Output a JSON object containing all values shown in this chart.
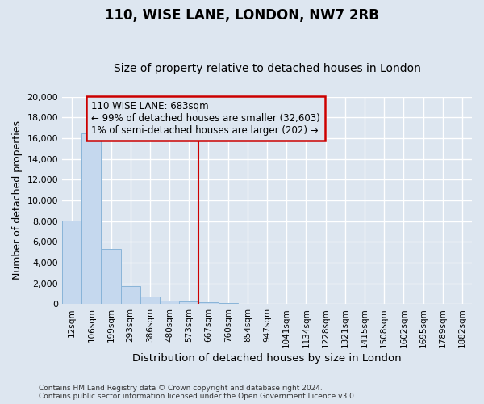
{
  "title": "110, WISE LANE, LONDON, NW7 2RB",
  "subtitle": "Size of property relative to detached houses in London",
  "xlabel": "Distribution of detached houses by size in London",
  "ylabel": "Number of detached properties",
  "bar_color": "#c5d8ee",
  "bar_edge_color": "#89b4d8",
  "vline_index": 7,
  "vline_color": "#cc0000",
  "annotation_line1": "110 WISE LANE: 683sqm",
  "annotation_line2": "← 99% of detached houses are smaller (32,603)",
  "annotation_line3": "1% of semi-detached houses are larger (202) →",
  "annotation_box_edgecolor": "#cc0000",
  "categories": [
    "12sqm",
    "106sqm",
    "199sqm",
    "293sqm",
    "386sqm",
    "480sqm",
    "573sqm",
    "667sqm",
    "760sqm",
    "854sqm",
    "947sqm",
    "1041sqm",
    "1134sqm",
    "1228sqm",
    "1321sqm",
    "1415sqm",
    "1508sqm",
    "1602sqm",
    "1695sqm",
    "1789sqm",
    "1882sqm"
  ],
  "values": [
    8050,
    16450,
    5350,
    1780,
    730,
    350,
    230,
    200,
    130,
    0,
    0,
    0,
    0,
    0,
    0,
    0,
    0,
    0,
    0,
    0,
    0
  ],
  "ylim": [
    0,
    20000
  ],
  "yticks": [
    0,
    2000,
    4000,
    6000,
    8000,
    10000,
    12000,
    14000,
    16000,
    18000,
    20000
  ],
  "bg_color": "#dde6f0",
  "grid_color": "white",
  "title_fontsize": 12,
  "subtitle_fontsize": 10,
  "footnote_line1": "Contains HM Land Registry data © Crown copyright and database right 2024.",
  "footnote_line2": "Contains public sector information licensed under the Open Government Licence v3.0."
}
